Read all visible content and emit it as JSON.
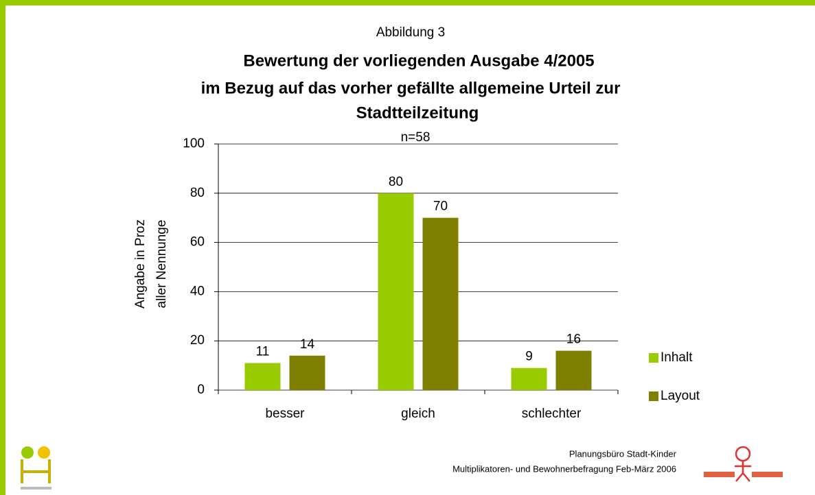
{
  "chart_data": {
    "type": "bar",
    "figure_label": "Abbildung 3",
    "title": [
      "Bewertung der vorliegenden Ausgabe 4/2005",
      "im Bezug auf das vorher gefällte allgemeine Urteil zur",
      "Stadtteilzeitung"
    ],
    "subtitle": "n=58",
    "ylabel": [
      "Angabe in Proz",
      "aller Nennunge"
    ],
    "categories": [
      "besser",
      "gleich",
      "schlechter"
    ],
    "series": [
      {
        "name": "Inhalt",
        "color": "#99cc00",
        "values": [
          11,
          80,
          9
        ]
      },
      {
        "name": "Layout",
        "color": "#808000",
        "values": [
          14,
          70,
          16
        ]
      }
    ],
    "ylim": [
      0,
      100
    ],
    "yticks": [
      0,
      20,
      40,
      60,
      80,
      100
    ],
    "grid": true,
    "legend": "right"
  },
  "footer": [
    "Planungsbüro Stadt-Kinder",
    "Multiplikatoren- und Bewohnerbefragung Feb-März 2006"
  ]
}
